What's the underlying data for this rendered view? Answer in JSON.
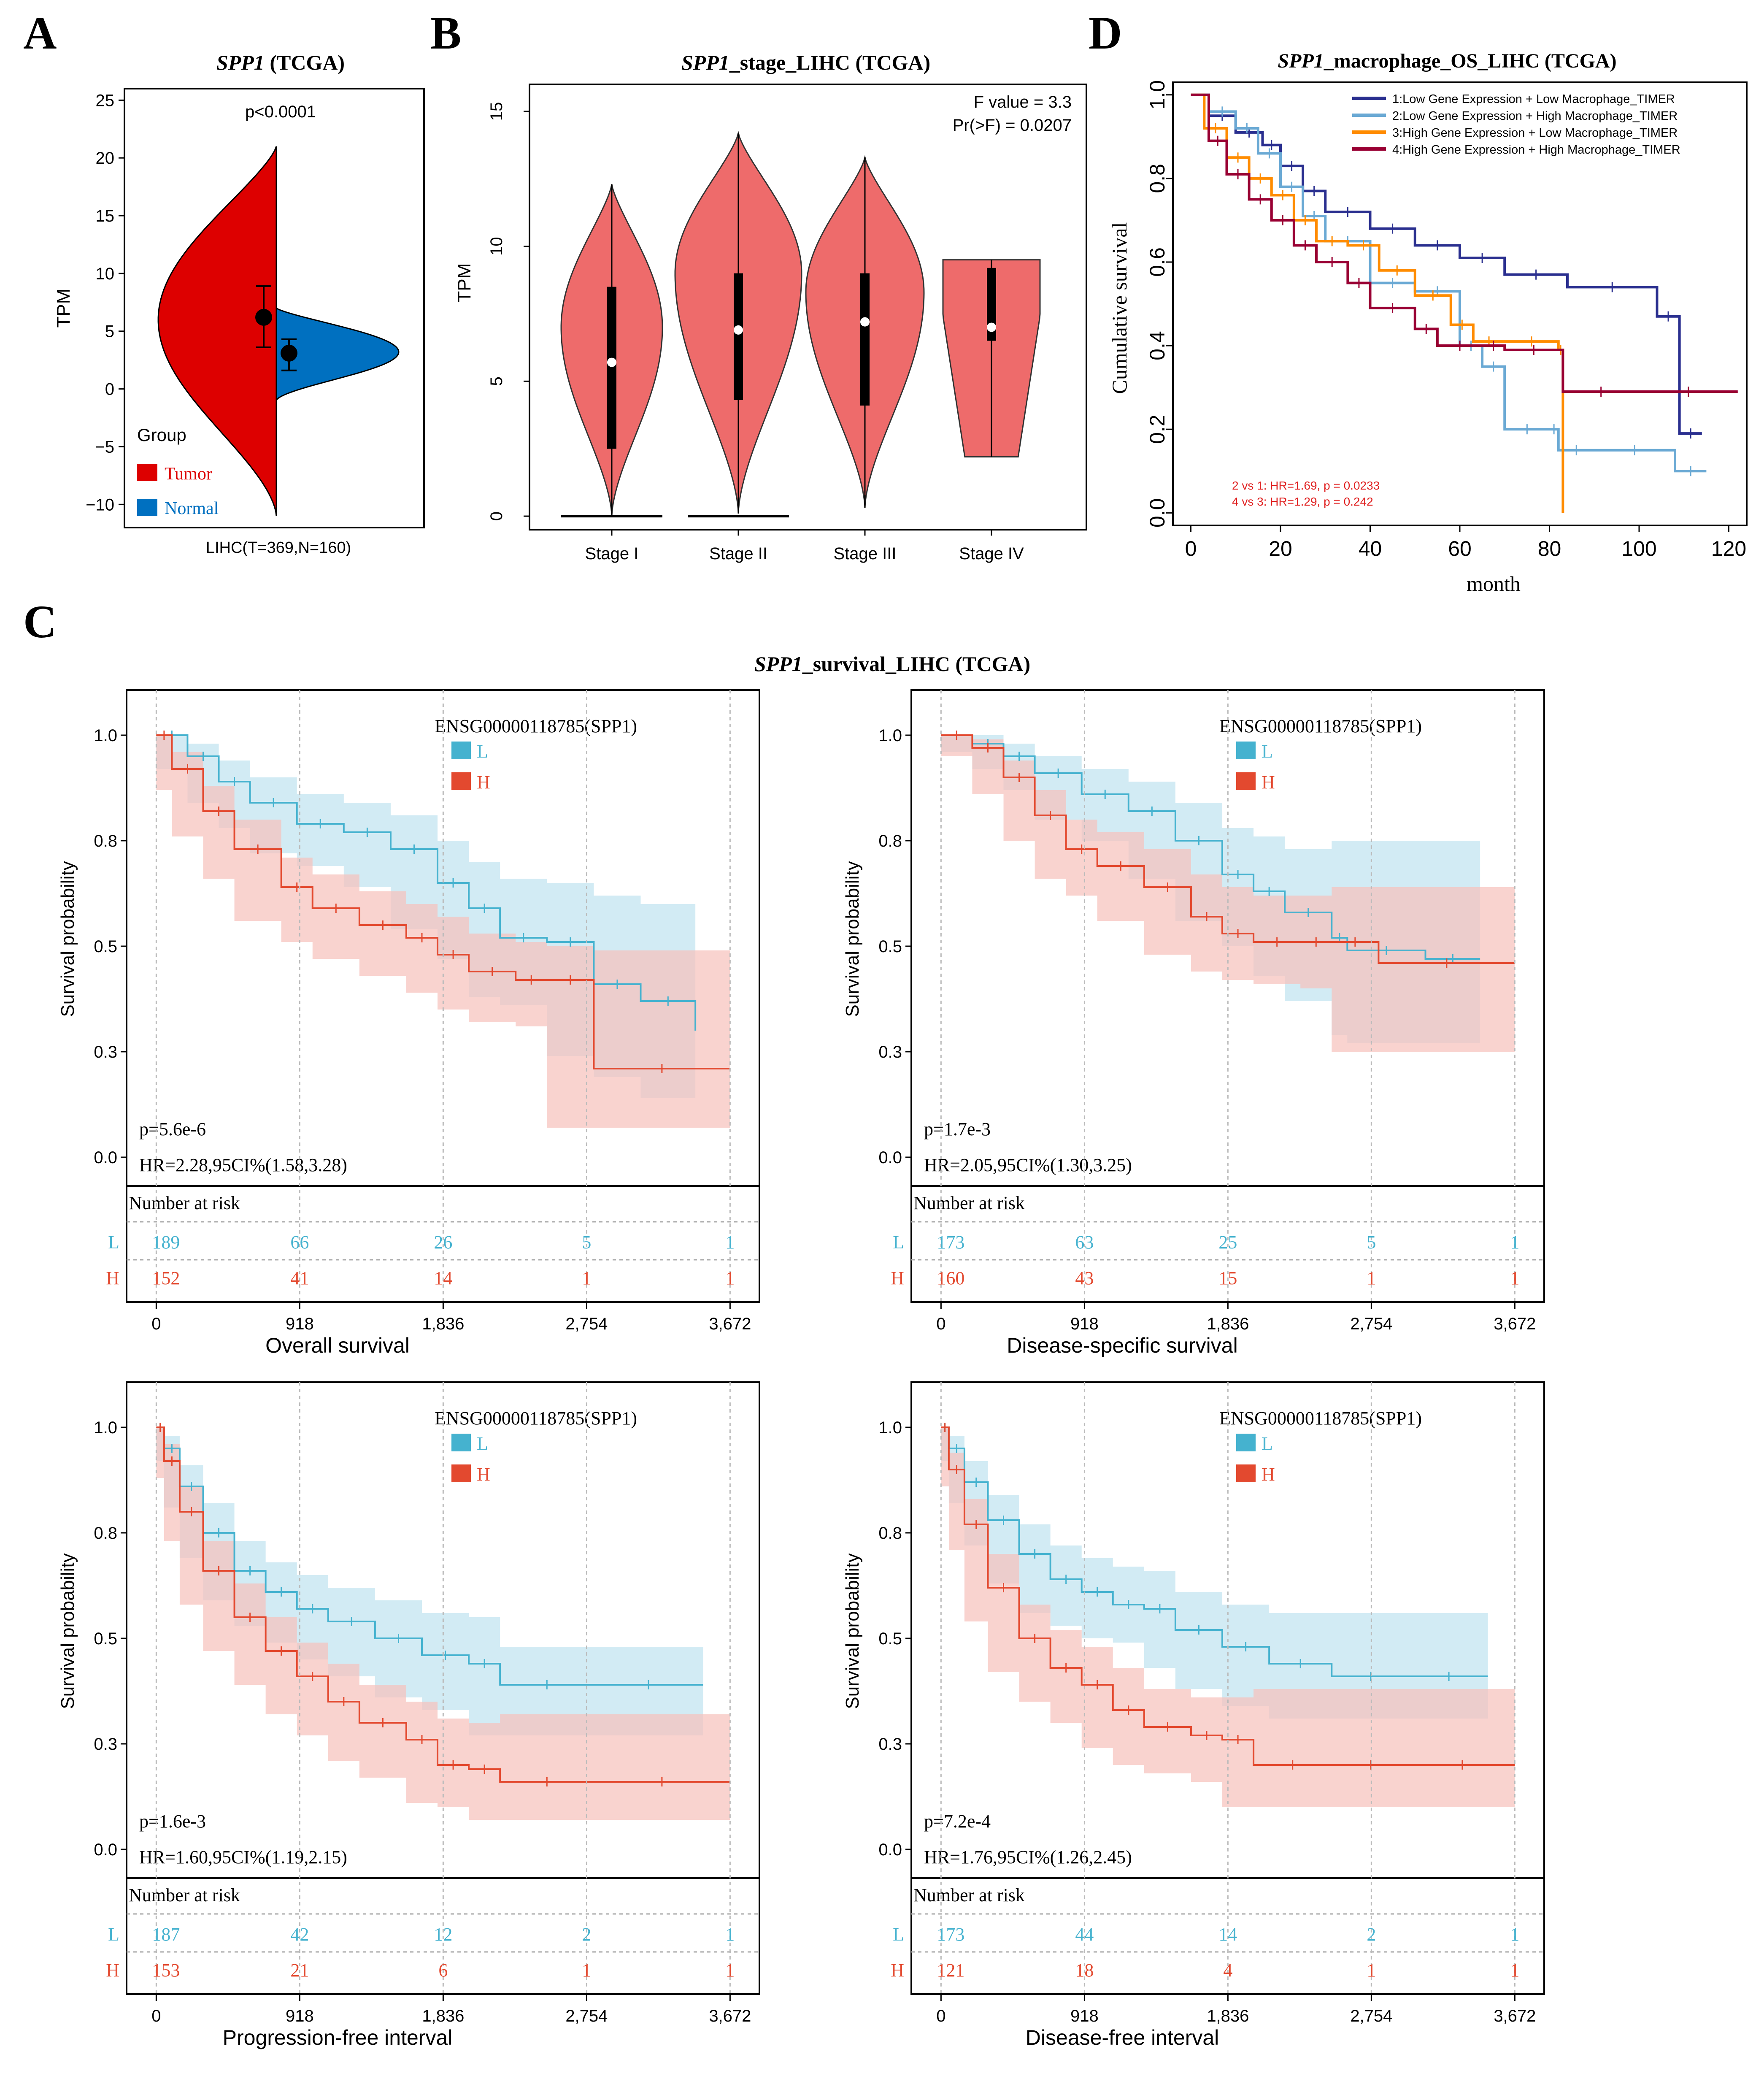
{
  "panel_letters": {
    "a": "A",
    "b": "B",
    "c": "C",
    "d": "D"
  },
  "colors": {
    "tumor": "#dd0000",
    "normal": "#0070c0",
    "violin": "#ee6b6b",
    "km_low": "#45b2cf",
    "km_high": "#e3492f",
    "d1": "#2a2f8f",
    "d2": "#6aa9d4",
    "d3": "#ff8c00",
    "d4": "#990033",
    "annot": "#e02020"
  },
  "chart_data": [
    {
      "id": "A",
      "type": "violin",
      "title_gene": "SPP1",
      "title_rest": " (TCGA)",
      "ylabel": "TPM",
      "ylim": [
        -12,
        26
      ],
      "yticks": [
        25,
        20,
        15,
        10,
        5,
        0,
        -5,
        -10
      ],
      "ytick_labels": [
        "25",
        "20",
        "15",
        "10",
        "5",
        "0",
        "−5",
        "−10"
      ],
      "xlabel": "LIHC(T=369,N=160)",
      "pvalue": "p<0.0001",
      "legend_title": "Group",
      "groups": [
        "Tumor",
        "Normal"
      ],
      "tumor": {
        "min": -11,
        "max": 21,
        "peak": 6,
        "q1": 3.6,
        "median": 6.2,
        "q3": 8.9
      },
      "normal": {
        "min": -1,
        "max": 7,
        "peak": 3.2,
        "q1": 1.6,
        "median": 3.1,
        "q3": 4.3
      }
    },
    {
      "id": "B",
      "type": "violin",
      "title_gene": "SPP1",
      "title_rest": "_stage_LIHC (TCGA)",
      "ylabel": "TPM",
      "ylim": [
        -0.5,
        16
      ],
      "yticks": [
        0,
        5,
        10,
        15
      ],
      "stat1": "F value = 3.3",
      "stat2": "Pr(>F) = 0.0207",
      "categories": [
        "Stage I",
        "Stage II",
        "Stage III",
        "Stage IV"
      ],
      "series": [
        {
          "name": "Stage I",
          "min": 0,
          "max": 12.3,
          "q1": 2.5,
          "median": 5.7,
          "q3": 8.5
        },
        {
          "name": "Stage II",
          "min": 0.1,
          "max": 14.2,
          "q1": 4.3,
          "median": 6.9,
          "q3": 9
        },
        {
          "name": "Stage III",
          "min": 0.3,
          "max": 13.3,
          "q1": 4.1,
          "median": 7.2,
          "q3": 9
        },
        {
          "name": "Stage IV",
          "min": 2.2,
          "max": 9.5,
          "q1": 6.5,
          "median": 7,
          "q3": 9.2
        }
      ]
    },
    {
      "id": "D",
      "type": "line",
      "title_gene": "SPP1",
      "title_rest": "_macrophage_OS_LIHC (TCGA)",
      "xlabel": "month",
      "ylabel": "Cumulative survival",
      "xlim": [
        -4,
        124
      ],
      "ylim": [
        -0.03,
        1.03
      ],
      "xticks": [
        0,
        20,
        40,
        60,
        80,
        100,
        120
      ],
      "yticks": [
        0,
        0.2,
        0.4,
        0.6,
        0.8,
        1
      ],
      "ytick_labels": [
        "0.0",
        "0.2",
        "0.4",
        "0.6",
        "0.8",
        "1.0"
      ],
      "annotations": [
        "2 vs 1: HR=1.69, p = 0.0233",
        "4 vs 3: HR=1.29, p = 0.242"
      ],
      "series": [
        {
          "name": "1:Low Gene Expression + Low Macrophage_TIMER",
          "x": [
            0,
            4,
            10,
            16,
            20,
            25,
            30,
            40,
            50,
            60,
            70,
            84,
            104,
            109,
            114
          ],
          "y": [
            1,
            0.95,
            0.91,
            0.88,
            0.83,
            0.77,
            0.72,
            0.68,
            0.64,
            0.61,
            0.57,
            0.54,
            0.47,
            0.19,
            0.19
          ]
        },
        {
          "name": "2:Low Gene Expression + High Macrophage_TIMER",
          "x": [
            0,
            4,
            10,
            15,
            20,
            25,
            30,
            40,
            50,
            60,
            65,
            70,
            80,
            82,
            90,
            108,
            115
          ],
          "y": [
            1,
            0.96,
            0.92,
            0.86,
            0.78,
            0.71,
            0.65,
            0.55,
            0.53,
            0.4,
            0.35,
            0.2,
            0.2,
            0.15,
            0.15,
            0.1,
            0.1
          ]
        },
        {
          "name": "3:High Gene Expression + Low Macrophage_TIMER",
          "x": [
            0,
            3,
            8,
            13,
            18,
            23,
            28,
            35,
            42,
            50,
            58,
            63,
            70,
            82,
            83
          ],
          "y": [
            1,
            0.92,
            0.85,
            0.8,
            0.76,
            0.7,
            0.65,
            0.64,
            0.58,
            0.52,
            0.45,
            0.41,
            0.41,
            0.39,
            0
          ]
        },
        {
          "name": "4:High Gene Expression + High Macrophage_TIMER",
          "x": [
            0,
            4,
            8,
            13,
            18,
            23,
            28,
            35,
            40,
            50,
            55,
            65,
            70,
            83,
            100,
            122
          ],
          "y": [
            1,
            0.89,
            0.81,
            0.75,
            0.7,
            0.64,
            0.6,
            0.55,
            0.49,
            0.44,
            0.4,
            0.4,
            0.39,
            0.29,
            0.29,
            0.29
          ]
        }
      ]
    }
  ],
  "km": {
    "title_gene": "SPP1",
    "title_rest": "_survival_LIHC (TCGA)",
    "legend_title": "ENSG00000118785(SPP1)",
    "legend_low": "L",
    "legend_high": "H",
    "ylabel": "Survival probability",
    "risk_title": "Number at risk",
    "yticks": [
      "1.0",
      "0.8",
      "0.5",
      "0.3",
      "0.0"
    ],
    "xticks": [
      "0",
      "918",
      "1,836",
      "2,754",
      "3,672"
    ]
  },
  "km_data": [
    {
      "id": "C1",
      "type": "line",
      "xlabel": "Overall survival",
      "pvalue": "p=5.6e-6",
      "hr": "HR=2.28,95CI%(1.58,3.28)",
      "risk_low": [
        "189",
        "66",
        "26",
        "5",
        "1"
      ],
      "risk_high": [
        "152",
        "41",
        "14",
        "1",
        "1"
      ],
      "low": {
        "x": [
          0,
          200,
          400,
          600,
          900,
          1200,
          1500,
          1800,
          2000,
          2200,
          2500,
          2800,
          3100,
          3450
        ],
        "y": [
          1,
          0.95,
          0.89,
          0.84,
          0.79,
          0.77,
          0.73,
          0.65,
          0.59,
          0.52,
          0.51,
          0.41,
          0.37,
          0.3
        ],
        "lo": [
          1,
          0.92,
          0.84,
          0.78,
          0.72,
          0.69,
          0.64,
          0.54,
          0.47,
          0.38,
          0.36,
          0.24,
          0.19,
          0.14
        ],
        "hi": [
          1,
          0.98,
          0.94,
          0.9,
          0.86,
          0.84,
          0.81,
          0.75,
          0.7,
          0.66,
          0.65,
          0.62,
          0.6,
          0.58
        ]
      },
      "high": {
        "x": [
          0,
          100,
          300,
          500,
          800,
          1000,
          1300,
          1600,
          1800,
          2000,
          2300,
          2500,
          2800,
          3672
        ],
        "y": [
          1,
          0.92,
          0.82,
          0.73,
          0.64,
          0.59,
          0.55,
          0.52,
          0.48,
          0.44,
          0.42,
          0.42,
          0.21,
          0.21
        ],
        "lo": [
          1,
          0.87,
          0.76,
          0.66,
          0.56,
          0.51,
          0.47,
          0.43,
          0.39,
          0.35,
          0.32,
          0.31,
          0.07,
          0.07
        ],
        "hi": [
          1,
          0.96,
          0.88,
          0.8,
          0.71,
          0.67,
          0.63,
          0.6,
          0.57,
          0.53,
          0.51,
          0.5,
          0.49,
          0.49
        ]
      }
    },
    {
      "id": "C2",
      "type": "line",
      "xlabel": "Disease-specific survival",
      "pvalue": "p=1.7e-3",
      "hr": "HR=2.05,95CI%(1.30,3.25)",
      "risk_low": [
        "173",
        "63",
        "25",
        "5",
        "1"
      ],
      "risk_high": [
        "160",
        "43",
        "15",
        "1",
        "1"
      ],
      "low": {
        "x": [
          0,
          200,
          400,
          600,
          900,
          1200,
          1500,
          1800,
          2000,
          2200,
          2500,
          2600,
          3100,
          3450
        ],
        "y": [
          1,
          0.98,
          0.95,
          0.91,
          0.86,
          0.82,
          0.75,
          0.67,
          0.63,
          0.58,
          0.52,
          0.49,
          0.47,
          0.47
        ],
        "lo": [
          1,
          0.96,
          0.92,
          0.87,
          0.8,
          0.75,
          0.66,
          0.56,
          0.5,
          0.43,
          0.37,
          0.29,
          0.27,
          0.27
        ],
        "hi": [
          1,
          1,
          0.98,
          0.95,
          0.92,
          0.89,
          0.84,
          0.78,
          0.76,
          0.73,
          0.75,
          0.75,
          0.75,
          0.75
        ]
      },
      "high": {
        "x": [
          0,
          200,
          400,
          600,
          800,
          1000,
          1300,
          1600,
          1800,
          2000,
          2300,
          2500,
          2800,
          3672
        ],
        "y": [
          1,
          0.97,
          0.9,
          0.81,
          0.73,
          0.69,
          0.64,
          0.57,
          0.53,
          0.51,
          0.51,
          0.51,
          0.46,
          0.46
        ],
        "lo": [
          1,
          0.95,
          0.86,
          0.75,
          0.66,
          0.62,
          0.56,
          0.48,
          0.44,
          0.42,
          0.41,
          0.4,
          0.25,
          0.25
        ],
        "hi": [
          1,
          0.99,
          0.94,
          0.87,
          0.8,
          0.77,
          0.73,
          0.67,
          0.64,
          0.62,
          0.62,
          0.64,
          0.64,
          0.64
        ]
      }
    },
    {
      "id": "C3",
      "type": "line",
      "xlabel": "Progression-free interval",
      "pvalue": "p=1.6e-3",
      "hr": "HR=1.60,95CI%(1.19,2.15)",
      "risk_low": [
        "187",
        "42",
        "12",
        "2",
        "1"
      ],
      "risk_high": [
        "153",
        "21",
        "6",
        "1",
        "1"
      ],
      "low": {
        "x": [
          0,
          50,
          150,
          300,
          500,
          700,
          900,
          1100,
          1400,
          1700,
          2000,
          2200,
          2800,
          3500
        ],
        "y": [
          1,
          0.95,
          0.86,
          0.75,
          0.66,
          0.61,
          0.57,
          0.54,
          0.5,
          0.46,
          0.44,
          0.39,
          0.39,
          0.39
        ],
        "lo": [
          1,
          0.92,
          0.81,
          0.69,
          0.59,
          0.53,
          0.49,
          0.45,
          0.41,
          0.36,
          0.33,
          0.27,
          0.27,
          0.27
        ],
        "hi": [
          1,
          0.98,
          0.91,
          0.82,
          0.73,
          0.68,
          0.65,
          0.62,
          0.59,
          0.56,
          0.55,
          0.48,
          0.48,
          0.48
        ]
      },
      "high": {
        "x": [
          0,
          50,
          150,
          300,
          500,
          700,
          900,
          1100,
          1300,
          1600,
          1800,
          2000,
          2200,
          2800,
          3672
        ],
        "y": [
          1,
          0.92,
          0.8,
          0.66,
          0.55,
          0.47,
          0.41,
          0.35,
          0.3,
          0.26,
          0.2,
          0.19,
          0.16,
          0.16,
          0.16
        ],
        "lo": [
          1,
          0.88,
          0.73,
          0.58,
          0.47,
          0.39,
          0.32,
          0.27,
          0.21,
          0.17,
          0.11,
          0.1,
          0.07,
          0.07,
          0.07
        ],
        "hi": [
          1,
          0.96,
          0.86,
          0.73,
          0.63,
          0.55,
          0.49,
          0.44,
          0.39,
          0.35,
          0.31,
          0.3,
          0.32,
          0.32,
          0.32
        ]
      }
    },
    {
      "id": "C4",
      "type": "line",
      "xlabel": "Disease-free interval",
      "pvalue": "p=7.2e-4",
      "hr": "HR=1.76,95CI%(1.26,2.45)",
      "risk_low": [
        "173",
        "44",
        "14",
        "2",
        "1"
      ],
      "risk_high": [
        "121",
        "18",
        "4",
        "1",
        "1"
      ],
      "low": {
        "x": [
          0,
          50,
          150,
          300,
          500,
          700,
          900,
          1100,
          1300,
          1500,
          1800,
          2100,
          2500,
          3000,
          3500
        ],
        "y": [
          1,
          0.95,
          0.87,
          0.78,
          0.7,
          0.64,
          0.61,
          0.58,
          0.57,
          0.52,
          0.48,
          0.44,
          0.41,
          0.41,
          0.41
        ],
        "lo": [
          1,
          0.92,
          0.82,
          0.72,
          0.63,
          0.56,
          0.53,
          0.5,
          0.49,
          0.43,
          0.38,
          0.34,
          0.31,
          0.31,
          0.31
        ],
        "hi": [
          1,
          0.98,
          0.92,
          0.84,
          0.77,
          0.72,
          0.69,
          0.67,
          0.66,
          0.61,
          0.58,
          0.56,
          0.56,
          0.56,
          0.56
        ]
      },
      "high": {
        "x": [
          0,
          50,
          150,
          300,
          500,
          700,
          900,
          1100,
          1300,
          1600,
          1800,
          2000,
          2500,
          3000,
          3672
        ],
        "y": [
          1,
          0.9,
          0.77,
          0.62,
          0.5,
          0.43,
          0.39,
          0.33,
          0.29,
          0.27,
          0.26,
          0.2,
          0.2,
          0.2,
          0.2
        ],
        "lo": [
          1,
          0.86,
          0.71,
          0.54,
          0.42,
          0.35,
          0.3,
          0.24,
          0.2,
          0.18,
          0.16,
          0.1,
          0.1,
          0.1,
          0.1
        ],
        "hi": [
          1,
          0.94,
          0.83,
          0.7,
          0.58,
          0.52,
          0.48,
          0.43,
          0.38,
          0.36,
          0.36,
          0.38,
          0.38,
          0.38,
          0.38
        ]
      }
    }
  ]
}
